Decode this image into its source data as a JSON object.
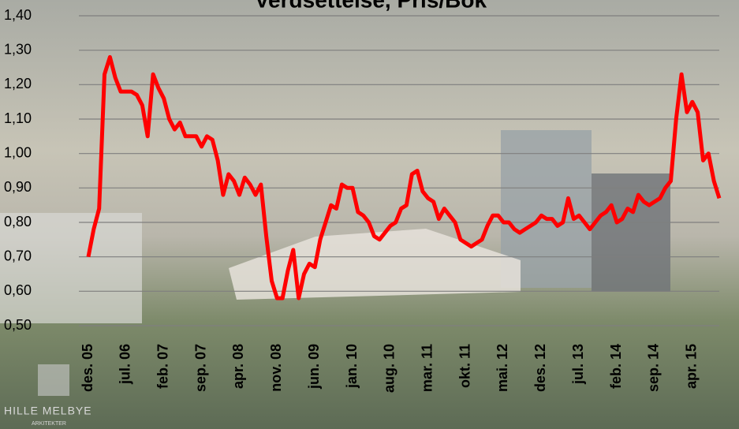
{
  "chart_data": {
    "type": "line",
    "title": "Verdsettelse, Pris/Bok",
    "annotations": [
      "HILLE MELBYE",
      "ARKITEKTER"
    ],
    "categories": [
      "des. 05",
      null,
      null,
      null,
      null,
      null,
      null,
      "jul. 06",
      null,
      null,
      null,
      null,
      null,
      null,
      "feb. 07",
      null,
      null,
      null,
      null,
      null,
      null,
      "sep. 07",
      null,
      null,
      null,
      null,
      null,
      null,
      "apr. 08",
      null,
      null,
      null,
      null,
      null,
      null,
      "nov. 08",
      null,
      null,
      null,
      null,
      null,
      null,
      "jun. 09",
      null,
      null,
      null,
      null,
      null,
      null,
      "jan. 10",
      null,
      null,
      null,
      null,
      null,
      null,
      "aug. 10",
      null,
      null,
      null,
      null,
      null,
      null,
      "mar. 11",
      null,
      null,
      null,
      null,
      null,
      null,
      "okt. 11",
      null,
      null,
      null,
      null,
      null,
      null,
      "mai. 12",
      null,
      null,
      null,
      null,
      null,
      null,
      "des. 12",
      null,
      null,
      null,
      null,
      null,
      null,
      "jul. 13",
      null,
      null,
      null,
      null,
      null,
      null,
      "feb. 14",
      null,
      null,
      null,
      null,
      null,
      null,
      "sep. 14",
      null,
      null,
      null,
      null,
      null,
      null,
      "apr. 15",
      null,
      null,
      null,
      null,
      null
    ],
    "series": [
      {
        "color": "#ff0000",
        "values": [
          0.7,
          0.78,
          0.84,
          1.23,
          1.28,
          1.22,
          1.18,
          1.18,
          1.18,
          1.17,
          1.14,
          1.05,
          1.23,
          1.19,
          1.16,
          1.1,
          1.07,
          1.09,
          1.05,
          1.05,
          1.05,
          1.02,
          1.05,
          1.04,
          0.98,
          0.88,
          0.94,
          0.92,
          0.88,
          0.93,
          0.91,
          0.88,
          0.91,
          0.76,
          0.63,
          0.58,
          0.58,
          0.66,
          0.72,
          0.58,
          0.65,
          0.68,
          0.67,
          0.75,
          0.8,
          0.85,
          0.84,
          0.91,
          0.9,
          0.9,
          0.83,
          0.82,
          0.8,
          0.76,
          0.75,
          0.77,
          0.79,
          0.8,
          0.84,
          0.85,
          0.94,
          0.95,
          0.89,
          0.87,
          0.86,
          0.81,
          0.84,
          0.82,
          0.8,
          0.75,
          0.74,
          0.73,
          0.74,
          0.75,
          0.79,
          0.82,
          0.82,
          0.8,
          0.8,
          0.78,
          0.77,
          0.78,
          0.79,
          0.8,
          0.82,
          0.81,
          0.81,
          0.79,
          0.8,
          0.87,
          0.81,
          0.82,
          0.8,
          0.78,
          0.8,
          0.82,
          0.83,
          0.85,
          0.8,
          0.81,
          0.84,
          0.83,
          0.88,
          0.86,
          0.85,
          0.86,
          0.87,
          0.9,
          0.92,
          1.1,
          1.23,
          1.12,
          1.15,
          1.12,
          0.98,
          1.0,
          0.92,
          0.87
        ]
      }
    ],
    "ylim": [
      0.5,
      1.4
    ],
    "yticks": [
      {
        "value": 0.5,
        "label": "0,50"
      },
      {
        "value": 0.6,
        "label": "0,60"
      },
      {
        "value": 0.7,
        "label": "0,70"
      },
      {
        "value": 0.8,
        "label": "0,80"
      },
      {
        "value": 0.9,
        "label": "0,90"
      },
      {
        "value": 1.0,
        "label": "1,00"
      },
      {
        "value": 1.1,
        "label": "1,10"
      },
      {
        "value": 1.2,
        "label": "1,20"
      },
      {
        "value": 1.3,
        "label": "1,30"
      },
      {
        "value": 1.4,
        "label": "1,40"
      }
    ],
    "grid": true
  }
}
